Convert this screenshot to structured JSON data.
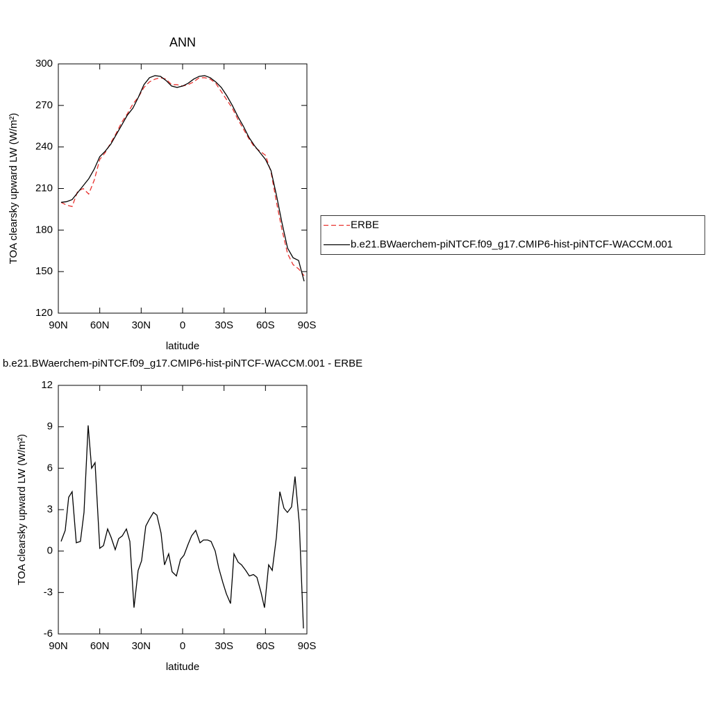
{
  "chart_data": [
    {
      "type": "line",
      "title": "ANN",
      "xlabel": "latitude",
      "ylabel": "TOA clearsky upward LW (W/m²)",
      "xlim": [
        90,
        -90
      ],
      "ylim": [
        120,
        300
      ],
      "xticks": [
        {
          "value": 90,
          "label": "90N"
        },
        {
          "value": 60,
          "label": "60N"
        },
        {
          "value": 30,
          "label": "30N"
        },
        0,
        {
          "value": -30,
          "label": "30S"
        },
        {
          "value": -60,
          "label": "60S"
        },
        {
          "value": -90,
          "label": "90S"
        }
      ],
      "yticks": [
        120,
        150,
        180,
        210,
        240,
        270,
        300
      ],
      "legend": "right",
      "x": [
        88,
        84,
        80,
        76,
        72,
        68,
        64,
        60,
        56,
        52,
        48,
        44,
        40,
        36,
        32,
        28,
        24,
        20,
        16,
        12,
        8,
        4,
        0,
        -4,
        -8,
        -12,
        -16,
        -20,
        -24,
        -28,
        -32,
        -36,
        -40,
        -44,
        -48,
        -52,
        -56,
        -60,
        -64,
        -68,
        -72,
        -76,
        -80,
        -84,
        -88
      ],
      "series": [
        {
          "name": "ERBE",
          "color": "#e8312d",
          "linestyle": "dashed",
          "values": [
            200,
            198,
            197,
            208,
            210,
            206,
            216,
            231,
            236,
            243,
            250,
            258,
            264,
            271,
            276,
            283,
            287,
            289,
            290,
            289,
            285,
            285,
            284,
            285,
            287,
            290,
            290,
            289,
            286,
            280,
            274,
            268,
            260,
            253,
            246,
            240,
            237,
            234,
            222,
            200,
            180,
            163,
            155,
            152,
            147
          ]
        },
        {
          "name": "b.e21.BWaerchem-piNTCF.f09_g17.CMIP6-hist-piNTCF-WACCM.001",
          "color": "#000000",
          "linestyle": "solid",
          "values": [
            200,
            200.5,
            202,
            207,
            212,
            217,
            224,
            233,
            237,
            242,
            249,
            256,
            263,
            268,
            276,
            285,
            290,
            291.5,
            291,
            288,
            284,
            283,
            284,
            286,
            289,
            291,
            291.5,
            290,
            287,
            283,
            277,
            270,
            262,
            255,
            247,
            241,
            236,
            231,
            223,
            205,
            185,
            167,
            160,
            158,
            143
          ]
        }
      ]
    },
    {
      "type": "line",
      "title": "b.e21.BWaerchem-piNTCF.f09_g17.CMIP6-hist-piNTCF-WACCM.001 - ERBE",
      "xlabel": "latitude",
      "ylabel": "TOA clearsky upward LW (W/m²)",
      "xlim": [
        90,
        -90
      ],
      "ylim": [
        -6,
        12
      ],
      "xticks": [
        {
          "value": 90,
          "label": "90N"
        },
        {
          "value": 60,
          "label": "60N"
        },
        {
          "value": 30,
          "label": "30N"
        },
        0,
        {
          "value": -30,
          "label": "30S"
        },
        {
          "value": -60,
          "label": "60S"
        },
        {
          "value": -90,
          "label": "90S"
        }
      ],
      "yticks": [
        -6,
        -3,
        0,
        3,
        6,
        9,
        12
      ],
      "x": [
        88,
        85,
        82.5,
        80,
        77,
        74,
        71.4,
        68.4,
        65.9,
        63.4,
        60,
        57.3,
        54.3,
        51.8,
        48.8,
        46.3,
        43.7,
        40.7,
        38.2,
        35.2,
        32.2,
        29.7,
        26.7,
        24.1,
        21.1,
        18.6,
        15.6,
        13.1,
        10.1,
        7.6,
        4.5,
        1.5,
        -1,
        -4,
        -6.5,
        -9.5,
        -12.6,
        -15.1,
        -18.1,
        -20.6,
        -23.6,
        -26.1,
        -29.2,
        -31.7,
        -34.7,
        -37.2,
        -40.2,
        -42.7,
        -45.7,
        -48.3,
        -51.3,
        -53.8,
        -56.8,
        -59.3,
        -62.3,
        -64.9,
        -67.9,
        -70.4,
        -73.4,
        -75.9,
        -78.9,
        -81.4,
        -84.5,
        -87.5
      ],
      "series": [
        {
          "color": "#000000",
          "linestyle": "solid",
          "values": [
            0.7,
            1.5,
            3.9,
            4.3,
            0.6,
            0.7,
            2.8,
            9.1,
            6.0,
            6.4,
            0.2,
            0.4,
            1.6,
            1.0,
            0.1,
            0.9,
            1.1,
            1.6,
            0.7,
            -4.1,
            -1.4,
            -0.7,
            1.8,
            2.3,
            2.8,
            2.6,
            1.3,
            -1.0,
            -0.2,
            -1.5,
            -1.8,
            -0.6,
            -0.3,
            0.5,
            1.1,
            1.5,
            0.6,
            0.8,
            0.8,
            0.7,
            0,
            -1.2,
            -2.3,
            -3.1,
            -3.8,
            -0.2,
            -0.8,
            -1.0,
            -1.4,
            -1.8,
            -1.7,
            -1.9,
            -3.0,
            -4.1,
            -1.0,
            -1.4,
            1.0,
            4.3,
            3.1,
            2.8,
            3.2,
            5.4,
            2,
            -5.6
          ]
        }
      ]
    }
  ]
}
